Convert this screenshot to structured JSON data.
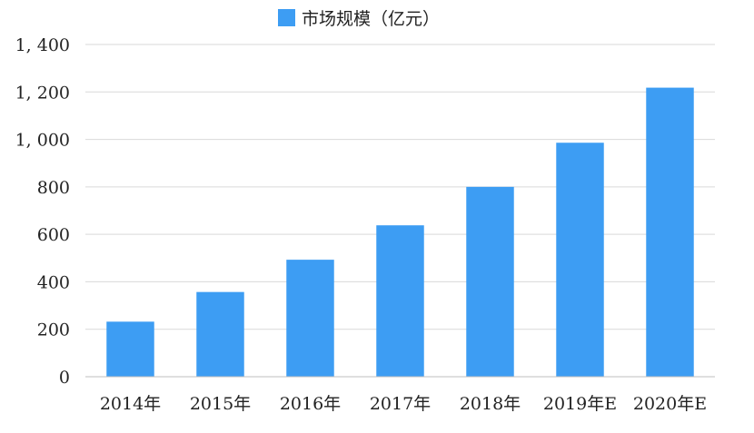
{
  "chart_data": {
    "type": "bar",
    "title": "",
    "xlabel": "",
    "ylabel": "",
    "categories": [
      "2014年",
      "2015年",
      "2016年",
      "2017年",
      "2018年",
      "2019年E",
      "2020年E"
    ],
    "series": [
      {
        "name": "市场规模（亿元）",
        "values": [
          232,
          357,
          493,
          638,
          800,
          986,
          1218
        ],
        "color": "#3d9df3"
      }
    ],
    "ylim": [
      0,
      1400
    ],
    "yticks": [
      0,
      200,
      400,
      600,
      800,
      1000,
      1200,
      1400
    ],
    "ytick_labels": [
      "0",
      "200",
      "400",
      "600",
      "800",
      "1, 000",
      "1, 200",
      "1, 400"
    ],
    "grid": true,
    "legend": "top-center"
  }
}
